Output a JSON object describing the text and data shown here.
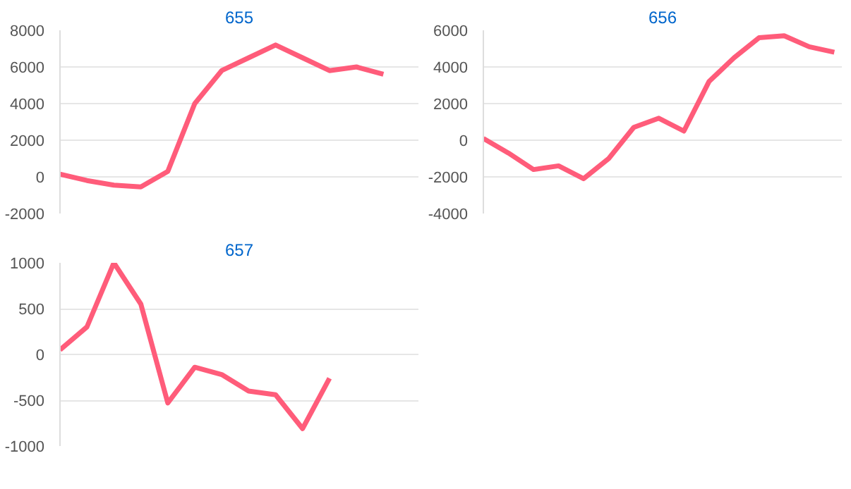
{
  "chart_data": [
    {
      "type": "line",
      "title": "655",
      "categories": [
        null,
        null,
        null,
        null,
        null,
        null,
        null,
        null,
        null,
        null,
        null,
        null,
        null,
        null
      ],
      "series": [
        {
          "color": "#ff5c7a",
          "values": [
            150,
            -200,
            -450,
            -550,
            300,
            4000,
            5800,
            6500,
            7200,
            6500,
            5800,
            6000,
            5600,
            null
          ]
        }
      ],
      "ylim": [
        -2000,
        8000
      ],
      "yticks": [
        -2000,
        0,
        2000,
        4000,
        6000,
        8000
      ],
      "grid": "y",
      "legend": false,
      "tick_labels": "y",
      "marker": "none",
      "line_style": "solid"
    },
    {
      "type": "line",
      "title": "656",
      "categories": [
        null,
        null,
        null,
        null,
        null,
        null,
        null,
        null,
        null,
        null,
        null,
        null,
        null,
        null,
        null
      ],
      "series": [
        {
          "color": "#ff5c7a",
          "values": [
            100,
            -700,
            -1600,
            -1400,
            -2100,
            -1000,
            700,
            1200,
            500,
            3200,
            4500,
            5600,
            5700,
            5100,
            4800
          ]
        }
      ],
      "ylim": [
        -4000,
        6000
      ],
      "yticks": [
        -4000,
        -2000,
        0,
        2000,
        4000,
        6000
      ],
      "grid": "y",
      "legend": false,
      "tick_labels": "y",
      "marker": "none",
      "line_style": "solid"
    },
    {
      "type": "line",
      "title": "657",
      "categories": [
        null,
        null,
        null,
        null,
        null,
        null,
        null,
        null,
        null,
        null,
        null,
        null,
        null,
        null
      ],
      "series": [
        {
          "color": "#ff5c7a",
          "values": [
            50,
            300,
            1000,
            550,
            -530,
            -140,
            -220,
            -400,
            -440,
            -810,
            -260,
            null,
            null,
            null
          ]
        }
      ],
      "ylim": [
        -1000,
        1000
      ],
      "yticks": [
        -1000,
        -500,
        0,
        500,
        1000
      ],
      "grid": "y",
      "legend": false,
      "tick_labels": "y",
      "marker": "none",
      "line_style": "solid"
    }
  ]
}
